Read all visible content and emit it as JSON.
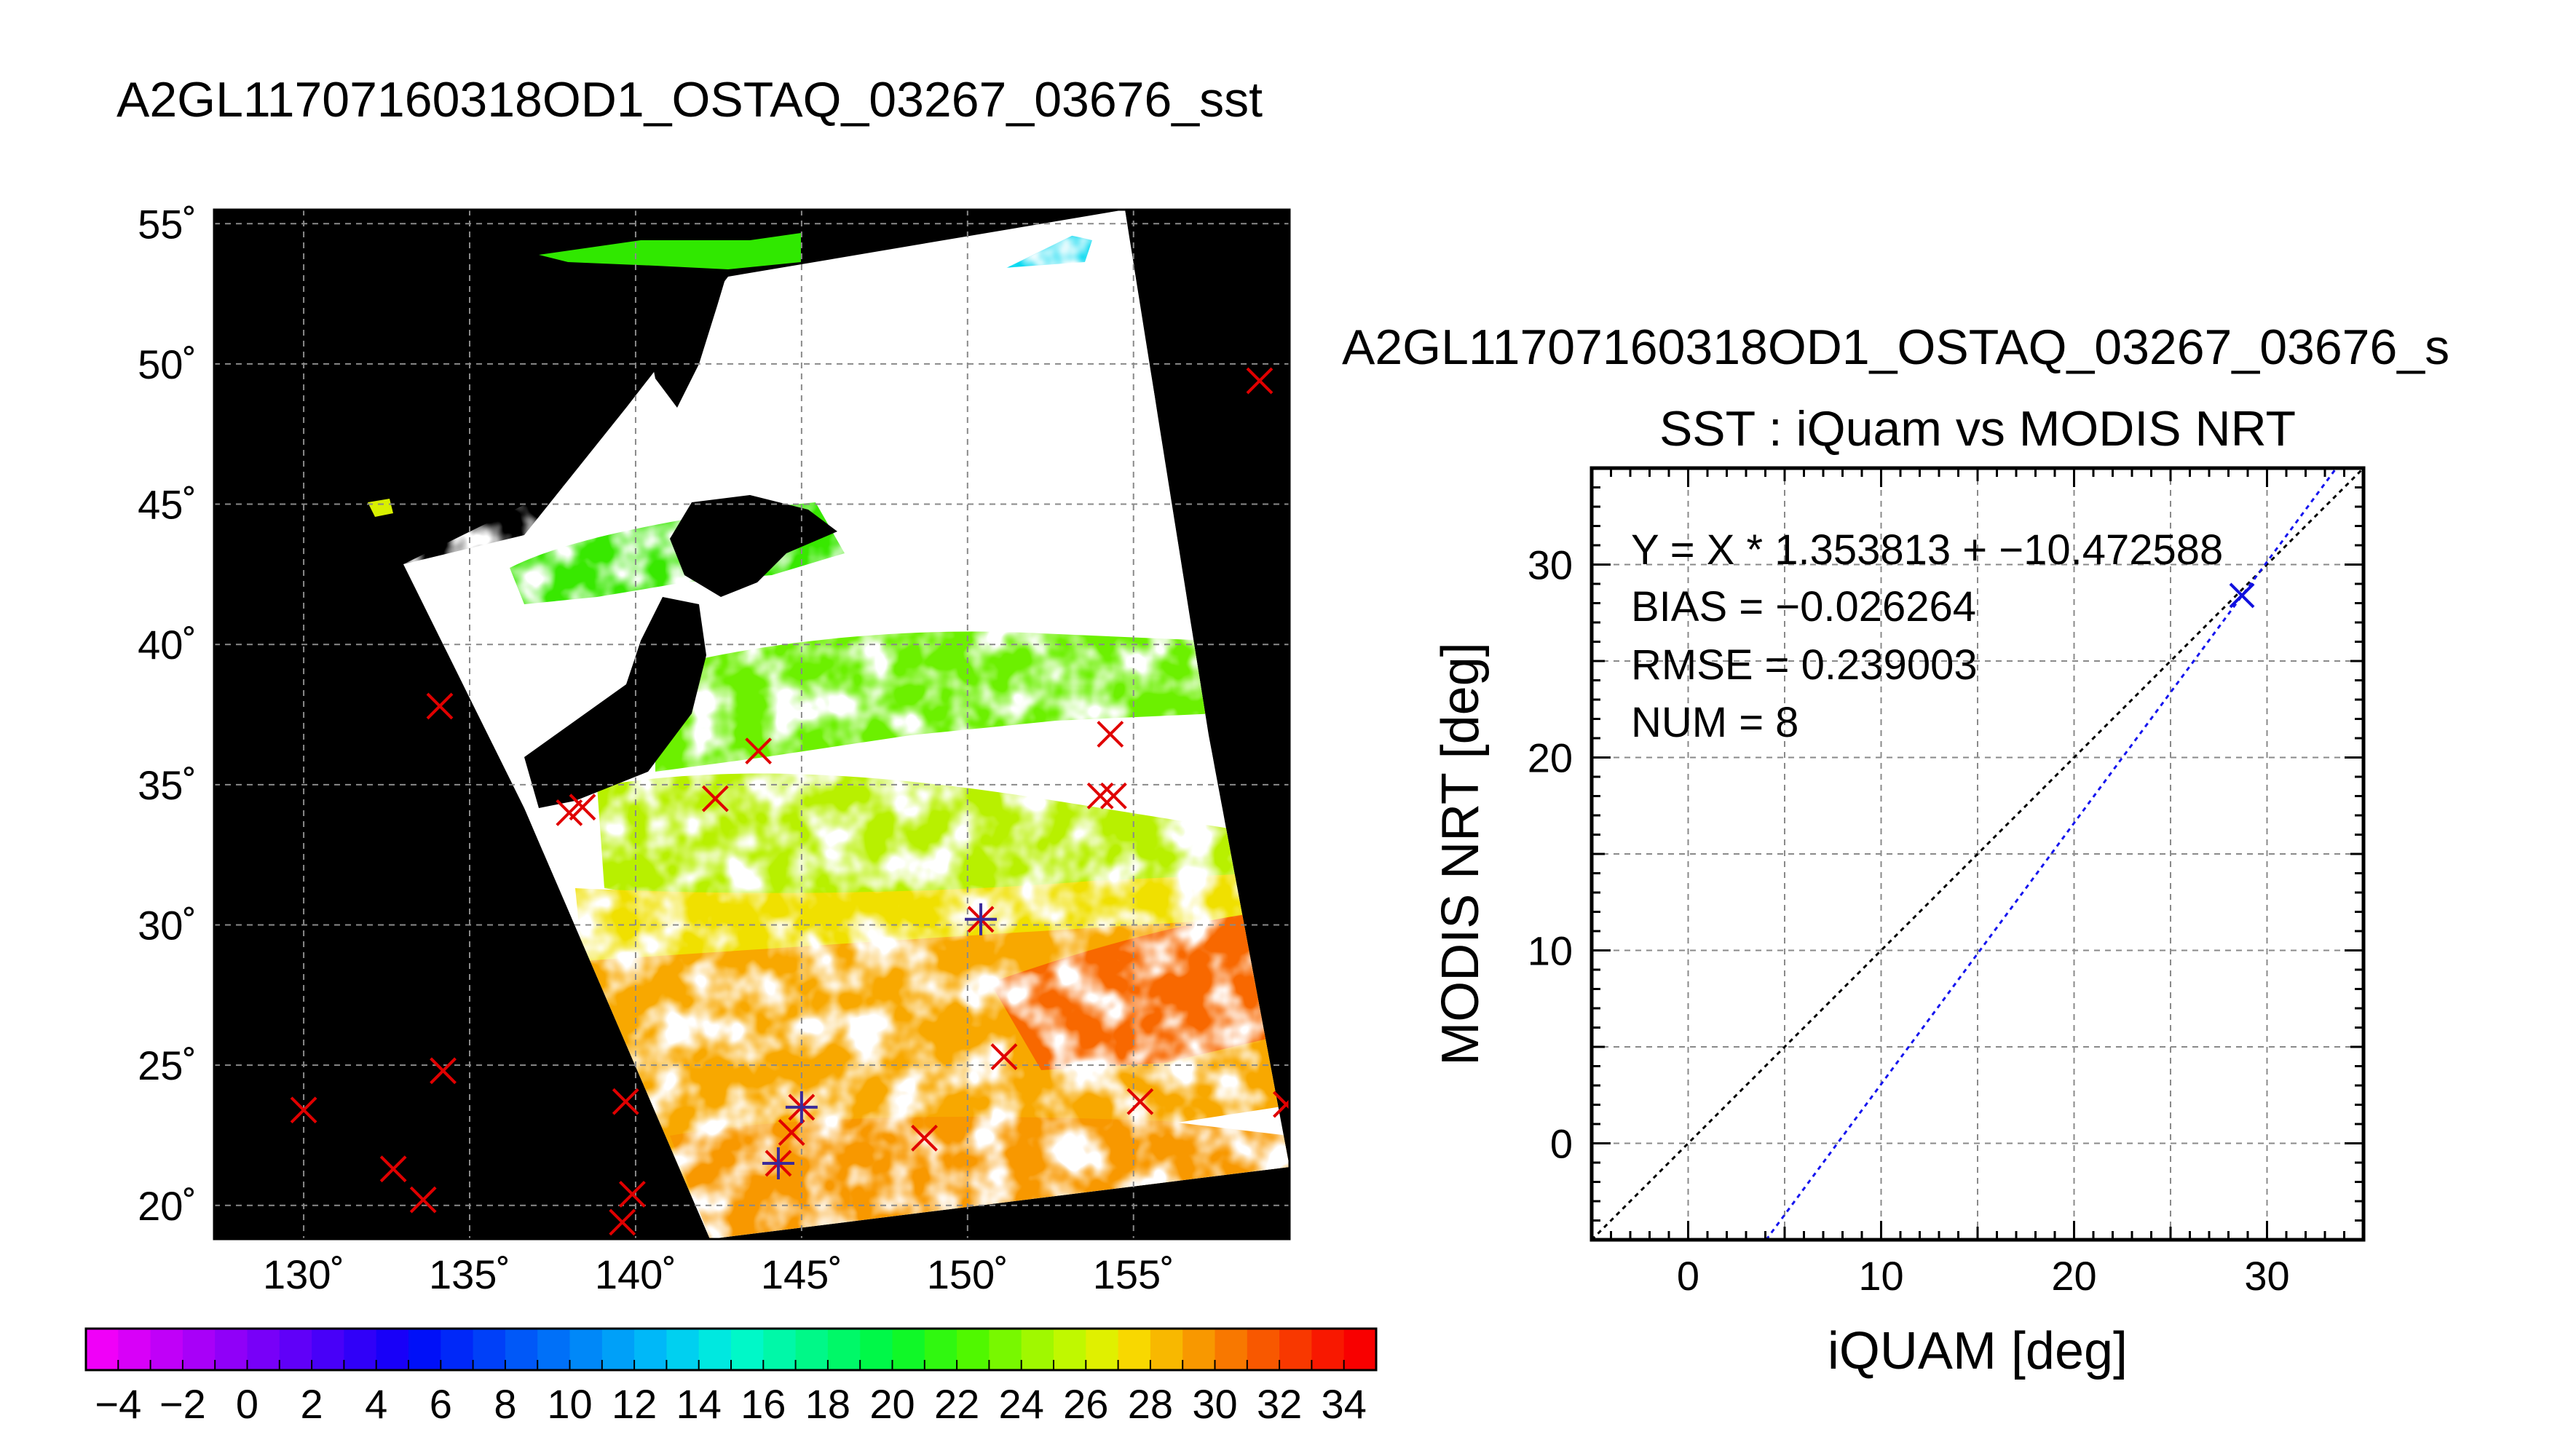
{
  "map_title": "A2GL11707160318OD1_OSTAQ_03267_03676_sst",
  "scatter_title_line1": "A2GL11707160318OD1_OSTAQ_03267_03676_s",
  "scatter_title_line2": "SST : iQuam vs MODIS NRT",
  "colors": {
    "land": "#000000",
    "no_data": "#ffffff",
    "grid": "#8a8a8a",
    "marker": "#e00000",
    "buoy_cross": "#3a2a9a",
    "scatter_point": "#1010dd",
    "fit_line": "#1515ee",
    "one_to_one": "#000000"
  },
  "chart_data": [
    {
      "type": "heatmap",
      "name": "SST swath map",
      "xlabel": "",
      "ylabel": "",
      "xlim": [
        127.3,
        159.7
      ],
      "ylim": [
        18.8,
        55.5
      ],
      "x_ticks": [
        130,
        135,
        140,
        145,
        150,
        155
      ],
      "x_tick_labels": [
        "130˚",
        "135˚",
        "140˚",
        "145˚",
        "150˚",
        "155˚"
      ],
      "y_ticks": [
        20,
        25,
        30,
        35,
        40,
        45,
        50,
        55
      ],
      "y_tick_labels": [
        "20˚",
        "25˚",
        "30˚",
        "35˚",
        "40˚",
        "45˚",
        "50˚",
        "55˚"
      ],
      "grid": true,
      "markers_x": [
        {
          "lon": 130.0,
          "lat": 23.4
        },
        {
          "lon": 132.7,
          "lat": 21.3
        },
        {
          "lon": 133.6,
          "lat": 20.2
        },
        {
          "lon": 134.2,
          "lat": 24.8
        },
        {
          "lon": 134.1,
          "lat": 37.8
        },
        {
          "lon": 138.0,
          "lat": 34.0
        },
        {
          "lon": 138.4,
          "lat": 34.2
        },
        {
          "lon": 139.7,
          "lat": 23.7
        },
        {
          "lon": 139.9,
          "lat": 20.4
        },
        {
          "lon": 139.6,
          "lat": 19.4
        },
        {
          "lon": 142.4,
          "lat": 34.5
        },
        {
          "lon": 143.7,
          "lat": 36.2
        },
        {
          "lon": 144.3,
          "lat": 21.5
        },
        {
          "lon": 144.7,
          "lat": 22.6
        },
        {
          "lon": 145.0,
          "lat": 23.5
        },
        {
          "lon": 148.7,
          "lat": 22.4
        },
        {
          "lon": 150.4,
          "lat": 30.2
        },
        {
          "lon": 151.1,
          "lat": 25.3
        },
        {
          "lon": 154.0,
          "lat": 34.6
        },
        {
          "lon": 154.4,
          "lat": 34.6
        },
        {
          "lon": 154.3,
          "lat": 36.8
        },
        {
          "lon": 155.2,
          "lat": 23.7
        },
        {
          "lon": 158.8,
          "lat": 49.4
        },
        {
          "lon": 159.6,
          "lat": 23.6
        }
      ],
      "markers_plus": [
        {
          "lon": 144.3,
          "lat": 21.5
        },
        {
          "lon": 145.0,
          "lat": 23.5
        },
        {
          "lon": 150.4,
          "lat": 30.2
        }
      ]
    },
    {
      "type": "heatmap",
      "name": "SST colorbar",
      "values": [
        -4,
        -2,
        0,
        2,
        4,
        6,
        8,
        10,
        12,
        14,
        16,
        18,
        20,
        22,
        24,
        26,
        28,
        30,
        32,
        34
      ],
      "tick_labels": [
        "−4",
        "−2",
        "0",
        "2",
        "4",
        "6",
        "8",
        "10",
        "12",
        "14",
        "16",
        "18",
        "20",
        "22",
        "24",
        "26",
        "28",
        "30",
        "32",
        "34"
      ],
      "range": [
        -5,
        35
      ],
      "segments": 40,
      "colors": [
        "#f000f8",
        "#d800f8",
        "#c000f8",
        "#a800f8",
        "#9000f8",
        "#7800f8",
        "#6000f8",
        "#4800f8",
        "#3000f8",
        "#1800f8",
        "#0010f8",
        "#0028f8",
        "#0040f8",
        "#0058f8",
        "#0070f8",
        "#0088f8",
        "#00a0f8",
        "#00b8f8",
        "#00d0f0",
        "#00e8e0",
        "#00f8c8",
        "#00f8a8",
        "#00f888",
        "#00f868",
        "#00f848",
        "#10f828",
        "#30f810",
        "#50f800",
        "#78f800",
        "#a0f800",
        "#c0f800",
        "#e0f000",
        "#f8d800",
        "#f8b800",
        "#f89800",
        "#f87800",
        "#f85800",
        "#f83800",
        "#f81800",
        "#f80000"
      ]
    },
    {
      "type": "scatter",
      "title": "SST : iQuam vs MODIS NRT",
      "xlabel": "iQUAM [deg]",
      "ylabel": "MODIS NRT [deg]",
      "xlim": [
        -5,
        35
      ],
      "ylim": [
        -5,
        35
      ],
      "x_ticks": [
        0,
        10,
        20,
        30
      ],
      "y_ticks": [
        0,
        10,
        20,
        30
      ],
      "grid": true,
      "points": [
        {
          "x": 28.7,
          "y": 28.4
        }
      ],
      "fit": {
        "slope": 1.353813,
        "intercept": -10.472588
      },
      "stats": [
        "Y = X * 1.353813 + −10.472588",
        "BIAS = −0.026264",
        "RMSE = 0.239003",
        "NUM = 8"
      ]
    }
  ]
}
